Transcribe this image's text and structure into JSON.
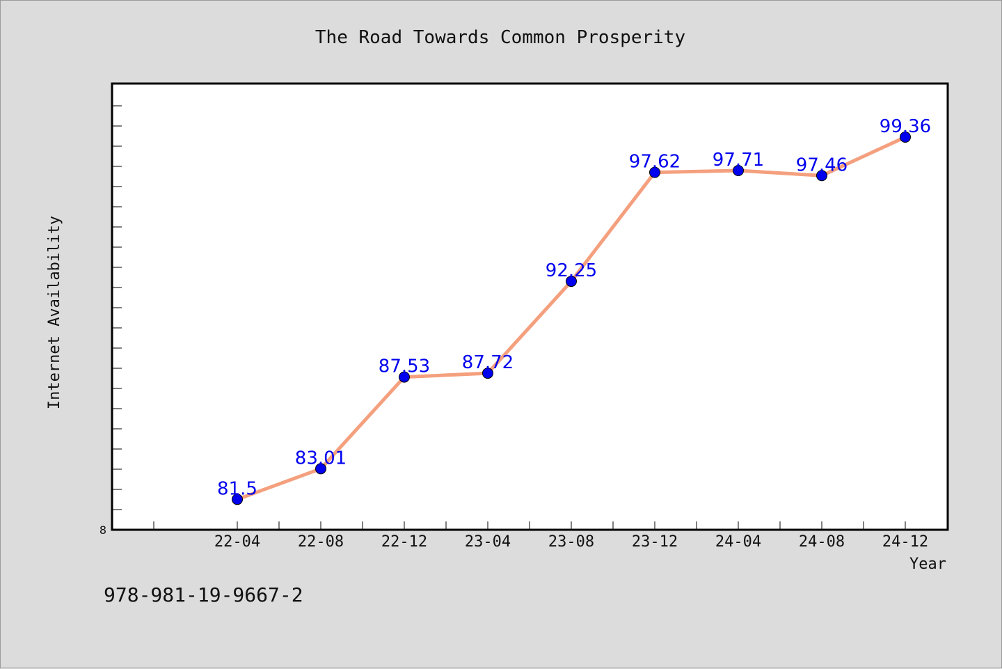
{
  "chart_data": {
    "type": "line",
    "title": "The Road Towards Common Prosperity",
    "xlabel": "Year",
    "ylabel": "Internet Availability",
    "categories": [
      "22-04",
      "22-08",
      "22-12",
      "23-04",
      "23-08",
      "23-12",
      "24-04",
      "24-08",
      "24-12"
    ],
    "values": [
      81.5,
      83.01,
      87.53,
      87.72,
      92.25,
      97.62,
      97.71,
      97.46,
      99.36
    ],
    "data_labels": [
      "81.5",
      "83.01",
      "87.53",
      "87.72",
      "92.25",
      "97.62",
      "97.71",
      "97.46",
      "99.36"
    ],
    "ylim": [
      80,
      102
    ],
    "y_origin_label": "8",
    "grid": false,
    "line_color": "#f4a07e",
    "marker_color": "#0000ee",
    "label_color": "#0000ee"
  },
  "footer": {
    "isbn": "978-981-19-9667-2"
  }
}
